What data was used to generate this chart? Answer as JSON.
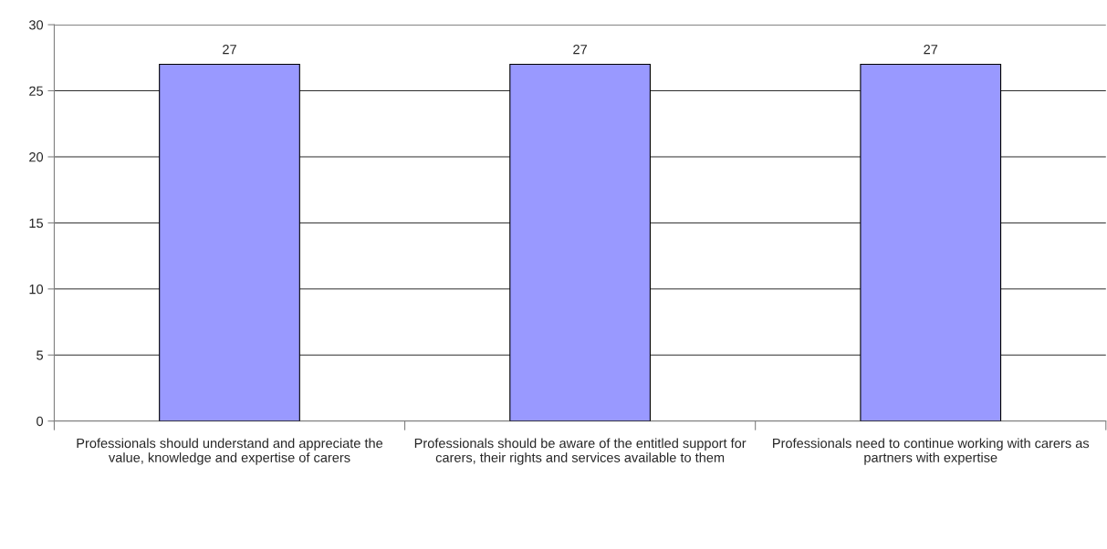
{
  "chart_data": {
    "type": "bar",
    "categories": [
      "Professionals should understand and appreciate the value, knowledge and expertise of carers",
      "Professionals should be aware of the entitled support for carers, their rights and services available to them",
      "Professionals need to continue working with carers as partners with expertise"
    ],
    "values": [
      27,
      27,
      27
    ],
    "color": "#9999ff",
    "data_labels": true,
    "ylim": [
      0,
      30
    ],
    "yticks": [
      0,
      5,
      10,
      15,
      20,
      25,
      30
    ],
    "grid": "y"
  }
}
